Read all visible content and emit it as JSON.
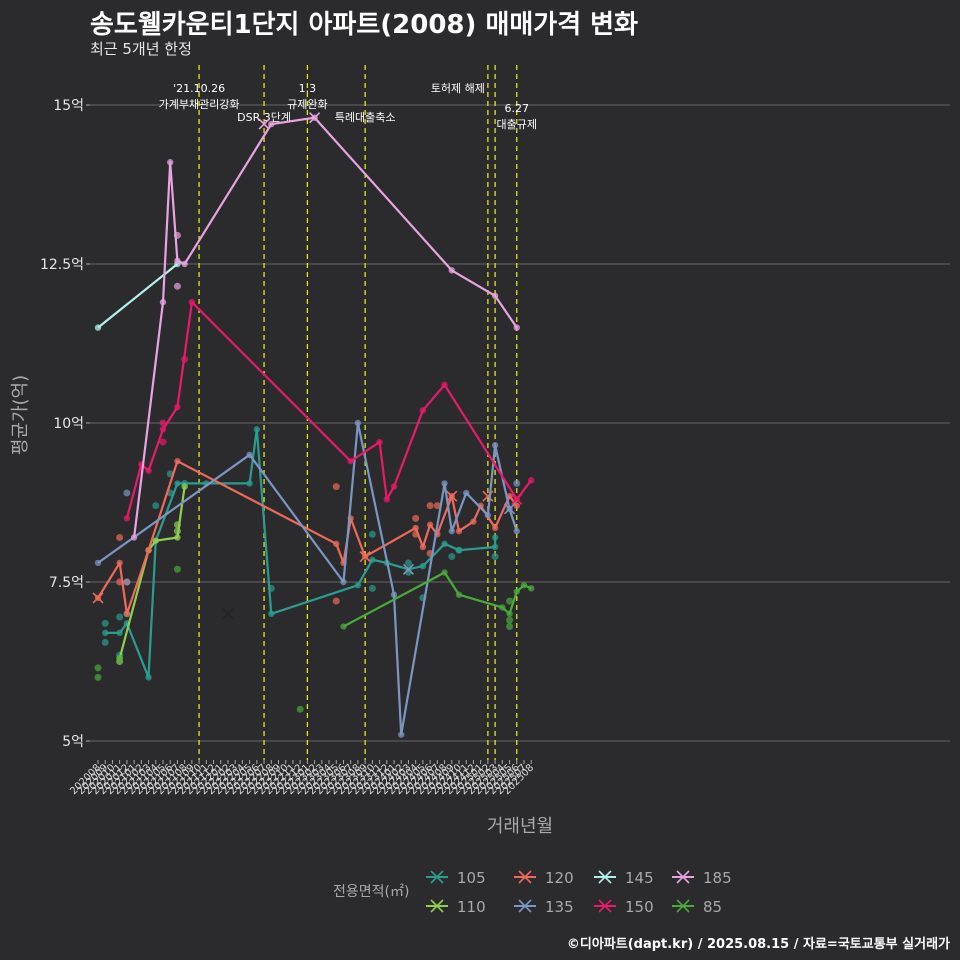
{
  "chart_data": {
    "type": "line",
    "title": "송도웰카운티1단지 아파트(2008) 매매가격 변화",
    "subtitle": "최근 5개년 한정",
    "xlabel": "거래년월",
    "ylabel": "평균가(억)",
    "caption": "©디아파트(dapt.kr) / 2025.08.15 / 자료=국토교통부 실거래가",
    "legend_title": "전용면적(㎡)",
    "legend_position": "bottom",
    "ylim": [
      4.5,
      15.7
    ],
    "y_ticks": [
      {
        "value": 5,
        "label": "5억"
      },
      {
        "value": 7.5,
        "label": "7.5억"
      },
      {
        "value": 10,
        "label": "10억"
      },
      {
        "value": 12.5,
        "label": "12.5억"
      },
      {
        "value": 15,
        "label": "15억"
      }
    ],
    "x_ticks": [
      "202008",
      "202009",
      "202010",
      "202011",
      "202012",
      "202101",
      "202102",
      "202103",
      "202104",
      "202105",
      "202106",
      "202107",
      "202108",
      "202109",
      "202110",
      "202111",
      "202112",
      "202201",
      "202202",
      "202203",
      "202204",
      "202205",
      "202206",
      "202207",
      "202208",
      "202209",
      "202210",
      "202211",
      "202212",
      "202301",
      "202302",
      "202303",
      "202304",
      "202305",
      "202306",
      "202307",
      "202308",
      "202309",
      "202310",
      "202311",
      "202312",
      "202401",
      "202402",
      "202403",
      "202404",
      "202405",
      "202406",
      "202407",
      "202408",
      "202409",
      "202410",
      "202411",
      "202412",
      "202501",
      "202502",
      "202503",
      "202504",
      "202505",
      "202506",
      "202507",
      "202508"
    ],
    "events": [
      {
        "x": "202110",
        "label": "'21.10.26\n가계부채관리강화",
        "row": 1
      },
      {
        "x": "202207",
        "label": "DSR 3단계",
        "row": 2
      },
      {
        "x": "202301",
        "label": "1.3\n규제완화",
        "row": 1
      },
      {
        "x": "202309",
        "label": "특례대출축소",
        "row": 2
      },
      {
        "x": "202502",
        "label": "토허제 해제",
        "row": 1,
        "anchor": "start"
      },
      {
        "x": "202503",
        "label": "",
        "row": 1
      },
      {
        "x": "202506",
        "label": "6.27\n대출규제",
        "row": 2
      }
    ],
    "series": [
      {
        "name": "105",
        "color": "#2a9d8f",
        "line": [
          [
            "202009",
            6.7
          ],
          [
            "202011",
            6.7
          ],
          [
            "202012",
            6.85
          ],
          [
            "202103",
            6.0
          ],
          [
            "202104",
            8.15
          ],
          [
            "202107",
            9.05
          ],
          [
            "202111",
            9.05
          ],
          [
            "202205",
            9.05
          ],
          [
            "202206",
            9.9
          ],
          [
            "202208",
            7.0
          ],
          [
            "202308",
            7.45
          ],
          [
            "202310",
            7.85
          ],
          [
            "202312",
            7.8
          ],
          [
            "202403",
            7.7
          ],
          [
            "202405",
            7.75
          ],
          [
            "202408",
            8.1
          ],
          [
            "202410",
            8.0
          ],
          [
            "202503",
            8.05
          ],
          [
            "202503",
            8.2
          ]
        ],
        "points": [
          [
            "202009",
            6.85
          ],
          [
            "202009",
            6.55
          ],
          [
            "202011",
            6.95
          ],
          [
            "202011",
            6.35
          ],
          [
            "202012",
            7.0
          ],
          [
            "202104",
            8.7
          ],
          [
            "202106",
            8.9
          ],
          [
            "202106",
            9.2
          ],
          [
            "202108",
            9.05
          ],
          [
            "202208",
            7.4
          ],
          [
            "202310",
            8.25
          ],
          [
            "202310",
            7.4
          ],
          [
            "202403",
            7.65
          ],
          [
            "202403",
            7.8
          ],
          [
            "202405",
            7.25
          ],
          [
            "202409",
            7.9
          ],
          [
            "202410",
            8.0
          ],
          [
            "202503",
            7.9
          ]
        ],
        "x_marks": []
      },
      {
        "name": "110",
        "color": "#8fd14f",
        "line": [
          [
            "202011",
            6.3
          ],
          [
            "202103",
            8.0
          ],
          [
            "202104",
            8.15
          ],
          [
            "202107",
            8.2
          ],
          [
            "202108",
            9.0
          ]
        ],
        "points": [
          [
            "202011",
            6.25
          ],
          [
            "202107",
            8.3
          ],
          [
            "202107",
            8.4
          ]
        ],
        "x_marks": []
      },
      {
        "name": "120",
        "color": "#ef6a5a",
        "line": [
          [
            "202008",
            7.25
          ],
          [
            "202011",
            7.8
          ],
          [
            "202012",
            7.0
          ],
          [
            "202103",
            8.0
          ],
          [
            "202107",
            9.4
          ],
          [
            "202305",
            8.1
          ],
          [
            "202306",
            7.8
          ],
          [
            "202307",
            8.5
          ],
          [
            "202309",
            7.9
          ],
          [
            "202404",
            8.35
          ],
          [
            "202405",
            8.05
          ],
          [
            "202406",
            8.4
          ],
          [
            "202407",
            8.25
          ],
          [
            "202409",
            8.85
          ],
          [
            "202410",
            8.3
          ],
          [
            "202412",
            8.45
          ],
          [
            "202501",
            8.7
          ],
          [
            "202503",
            8.35
          ],
          [
            "202505",
            8.85
          ],
          [
            "202506",
            8.7
          ]
        ],
        "points": [
          [
            "202011",
            7.5
          ],
          [
            "202011",
            8.2
          ],
          [
            "202012",
            7.5
          ],
          [
            "202305",
            9.0
          ],
          [
            "202305",
            7.2
          ],
          [
            "202404",
            8.5
          ],
          [
            "202404",
            8.25
          ],
          [
            "202406",
            8.7
          ],
          [
            "202406",
            7.95
          ],
          [
            "202407",
            8.7
          ]
        ],
        "x_marks": [
          [
            "202008",
            7.25
          ],
          [
            "202202",
            7.0
          ],
          [
            "202309",
            7.9
          ],
          [
            "202409",
            8.85
          ],
          [
            "202502",
            8.85
          ]
        ]
      },
      {
        "name": "135",
        "color": "#7b96c2",
        "line": [
          [
            "202008",
            7.8
          ],
          [
            "202205",
            9.5
          ],
          [
            "202306",
            7.5
          ],
          [
            "202308",
            10.0
          ],
          [
            "202401",
            7.3
          ],
          [
            "202402",
            5.1
          ],
          [
            "202408",
            9.05
          ],
          [
            "202409",
            8.3
          ],
          [
            "202411",
            8.9
          ],
          [
            "202502",
            8.55
          ],
          [
            "202503",
            9.65
          ],
          [
            "202505",
            8.65
          ],
          [
            "202506",
            8.3
          ]
        ],
        "points": [
          [
            "202012",
            8.9
          ],
          [
            "202012",
            7.5
          ],
          [
            "202506",
            9.05
          ]
        ],
        "x_marks": [
          [
            "202403",
            7.7
          ],
          [
            "202505",
            8.65
          ]
        ]
      },
      {
        "name": "145",
        "color": "#b2f0ec",
        "line": [
          [
            "202008",
            11.5
          ],
          [
            "202107",
            12.5
          ]
        ],
        "points": [],
        "x_marks": []
      },
      {
        "name": "150",
        "color": "#e81a6a",
        "line": [
          [
            "202012",
            8.5
          ],
          [
            "202102",
            9.35
          ],
          [
            "202103",
            9.25
          ],
          [
            "202105",
            9.9
          ],
          [
            "202107",
            10.25
          ],
          [
            "202109",
            11.9
          ],
          [
            "202307",
            9.4
          ],
          [
            "202311",
            9.7
          ],
          [
            "202312",
            8.8
          ],
          [
            "202401",
            9.0
          ],
          [
            "202405",
            10.2
          ],
          [
            "202408",
            10.6
          ],
          [
            "202506",
            8.8
          ],
          [
            "202508",
            9.1
          ]
        ],
        "points": [
          [
            "202105",
            10.0
          ],
          [
            "202105",
            9.7
          ],
          [
            "202108",
            11.0
          ]
        ],
        "x_marks": [
          [
            "202506",
            8.8
          ]
        ]
      },
      {
        "name": "185",
        "color": "#e8a4e0",
        "line": [
          [
            "202101",
            8.2
          ],
          [
            "202105",
            11.9
          ],
          [
            "202106",
            14.1
          ],
          [
            "202107",
            12.55
          ],
          [
            "202108",
            12.5
          ],
          [
            "202208",
            14.7
          ],
          [
            "202302",
            14.8
          ],
          [
            "202409",
            12.4
          ],
          [
            "202503",
            12.0
          ],
          [
            "202506",
            11.5
          ]
        ],
        "points": [
          [
            "202107",
            12.95
          ],
          [
            "202107",
            12.15
          ]
        ],
        "x_marks": [
          [
            "202207",
            14.7
          ],
          [
            "202302",
            14.8
          ]
        ]
      },
      {
        "name": "85",
        "color": "#4aaa3c",
        "line": [
          [
            "202306",
            6.8
          ],
          [
            "202408",
            7.65
          ],
          [
            "202410",
            7.3
          ],
          [
            "202504",
            7.1
          ],
          [
            "202505",
            7.0
          ],
          [
            "202506",
            7.35
          ],
          [
            "202507",
            7.45
          ],
          [
            "202508",
            7.4
          ]
        ],
        "points": [
          [
            "202008",
            6.15
          ],
          [
            "202008",
            6.0
          ],
          [
            "202011",
            6.3
          ],
          [
            "202107",
            7.7
          ],
          [
            "202212",
            5.5
          ],
          [
            "202505",
            6.9
          ],
          [
            "202505",
            6.8
          ],
          [
            "202505",
            7.2
          ]
        ],
        "x_marks": []
      }
    ],
    "legend_rows": [
      [
        "105",
        "120",
        "145",
        "185"
      ],
      [
        "110",
        "135",
        "150",
        "85"
      ]
    ],
    "grid": true
  }
}
